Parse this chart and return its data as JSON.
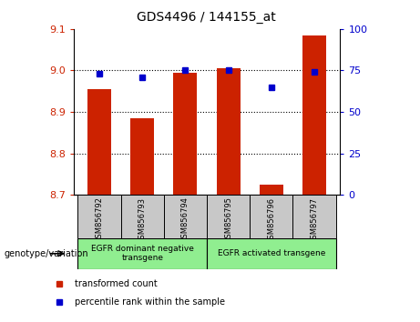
{
  "title": "GDS4496 / 144155_at",
  "samples": [
    "GSM856792",
    "GSM856793",
    "GSM856794",
    "GSM856795",
    "GSM856796",
    "GSM856797"
  ],
  "bar_values": [
    8.955,
    8.885,
    8.995,
    9.005,
    8.725,
    9.085
  ],
  "percentile_values": [
    73,
    71,
    75,
    75,
    65,
    74
  ],
  "ylim_left": [
    8.7,
    9.1
  ],
  "ylim_right": [
    0,
    100
  ],
  "yticks_left": [
    8.7,
    8.8,
    8.9,
    9.0,
    9.1
  ],
  "yticks_right": [
    0,
    25,
    50,
    75,
    100
  ],
  "bar_color": "#cc2200",
  "dot_color": "#0000cc",
  "bar_width": 0.55,
  "group1_label": "EGFR dominant negative\ntransgene",
  "group2_label": "EGFR activated transgene",
  "group_bg_color": "#90ee90",
  "legend_label_bar": "transformed count",
  "legend_label_dot": "percentile rank within the sample",
  "xlabel_left": "genotype/variation",
  "grid_yticks": [
    8.8,
    8.9,
    9.0
  ],
  "xtick_bg": "#c8c8c8"
}
